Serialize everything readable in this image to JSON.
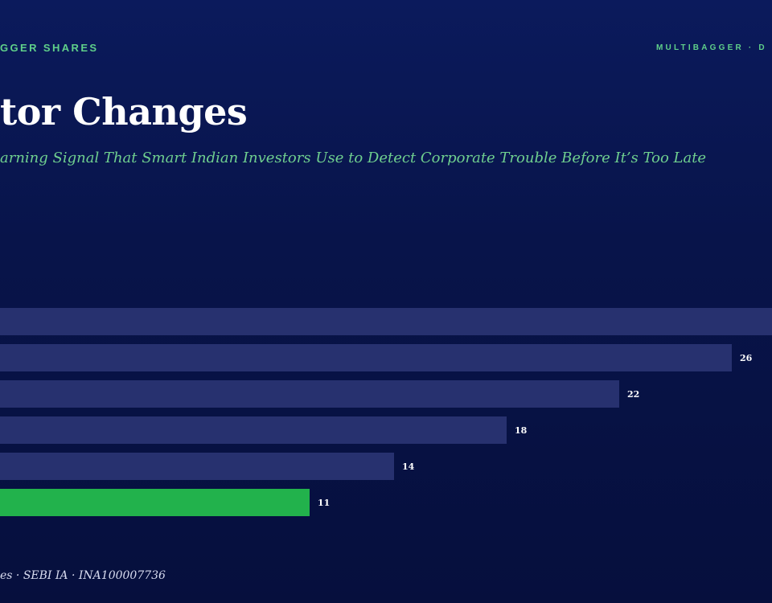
{
  "header": {
    "brand_left": "GGER SHARES",
    "brand_right": "MULTIBAGGER · D"
  },
  "title": "tor Changes",
  "subtitle": "arning Signal That Smart Indian Investors Use to Detect Corporate Trouble Before It’s Too Late",
  "footer": "es · SEBI IA · INA100007736",
  "colors": {
    "bar": "#27316f",
    "highlight": "#22b24c",
    "accent_text": "#5fd08a",
    "background": "#08144a"
  },
  "chart_data": {
    "type": "bar",
    "orientation": "horizontal",
    "title": "",
    "xlabel": "",
    "ylabel": "",
    "series": [
      {
        "values": [
          30,
          26,
          22,
          18,
          14,
          11
        ],
        "labels": [
          "",
          "26",
          "22",
          "18",
          "14",
          "11"
        ],
        "highlight_index": 5
      }
    ],
    "xlim": [
      0,
      30
    ],
    "grid": false,
    "legend": "none"
  }
}
